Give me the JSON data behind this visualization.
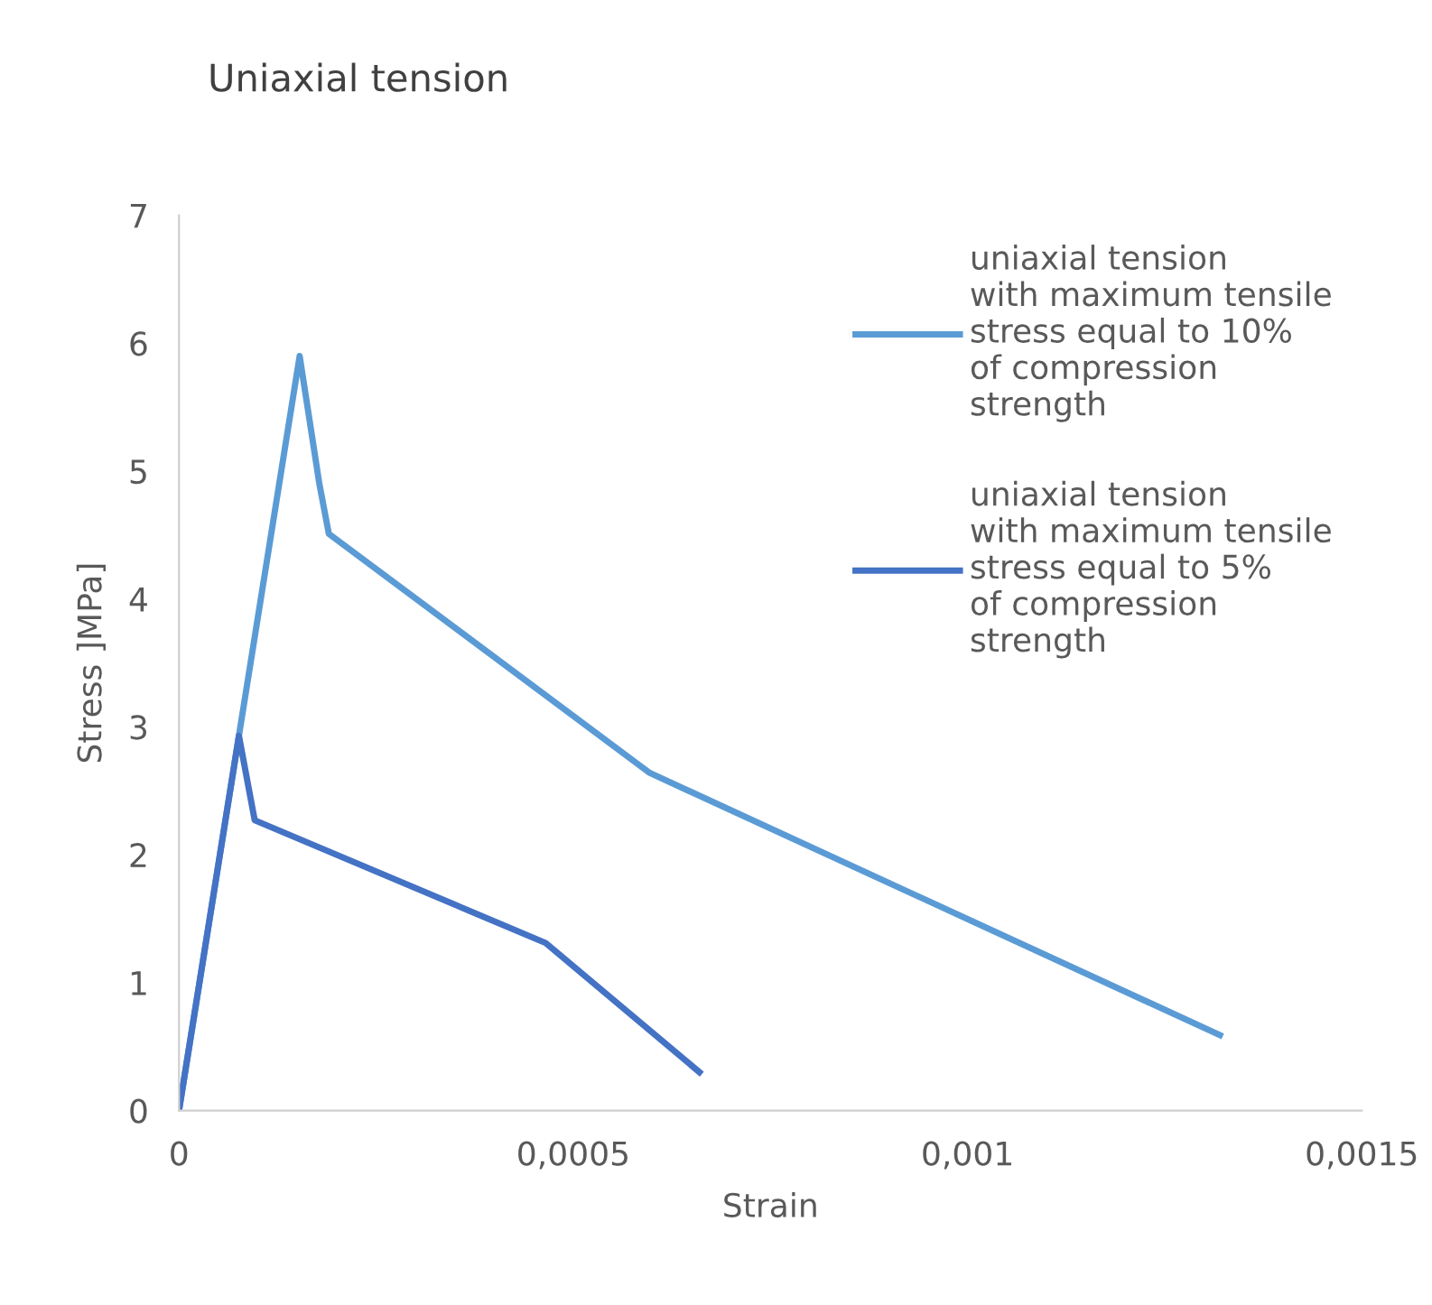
{
  "chart_data": {
    "type": "line",
    "title": "Uniaxial tension",
    "xlabel": "Strain",
    "ylabel": "Stress ]MPa]",
    "series": [
      {
        "name": "uniaxial tension with maximum tensile stress equal to 10% of compression strength",
        "color": "#5b9bd5",
        "x": [
          0,
          0.000153,
          0.000178,
          0.00019,
          0.000597,
          0.00132
        ],
        "values": [
          0,
          5.9,
          4.9,
          4.51,
          2.64,
          0.59
        ]
      },
      {
        "name": "uniaxial tension with maximum tensile stress equal to 5% of compression strength",
        "color": "#4472c4",
        "x": [
          0,
          7.6e-05,
          9.6e-05,
          0.000465,
          0.00066
        ],
        "values": [
          0,
          2.93,
          2.27,
          1.31,
          0.3
        ]
      }
    ],
    "xlim": [
      0,
      0.0015
    ],
    "xticks": [
      0,
      {
        "value": 0.0005,
        "label": "0,0005"
      },
      {
        "value": 0.001,
        "label": "0,001"
      },
      {
        "value": 0.0015,
        "label": "0,0015"
      }
    ],
    "ylim": [
      0,
      7
    ],
    "yticks": [
      0,
      1,
      2,
      3,
      4,
      5,
      6,
      7
    ],
    "grid": false,
    "legend": "top right"
  }
}
